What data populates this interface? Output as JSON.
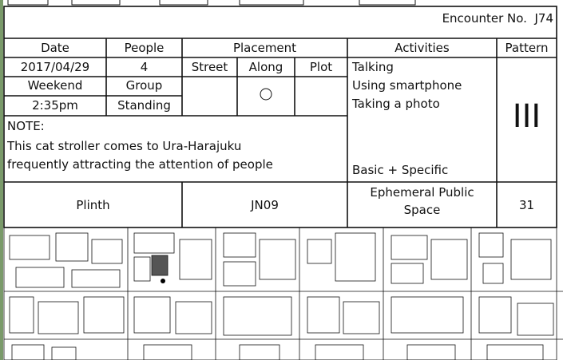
{
  "encounter": {
    "label": "Encounter No.",
    "code": "J74"
  },
  "columns": [
    "Date",
    "People",
    "Placement",
    "Activities",
    "Pattern"
  ],
  "placement_columns": [
    "Street",
    "Along",
    "Plot"
  ],
  "rows": [
    [
      "2017/04/29",
      "4"
    ],
    [
      "Weekend",
      "Group"
    ],
    [
      "2:35pm",
      "Standing"
    ]
  ],
  "activities": [
    "Talking",
    "Using smartphone",
    "Taking a photo"
  ],
  "activity_type": "Basic + Specific",
  "pattern": "III",
  "note": {
    "label": "NOTE:",
    "lines": [
      "This cat stroller comes to Ura-Harajuku",
      "frequently attracting the attention of people"
    ]
  },
  "footer": [
    "Plinth",
    "JN09",
    "Ephemeral Public Space",
    "31"
  ]
}
